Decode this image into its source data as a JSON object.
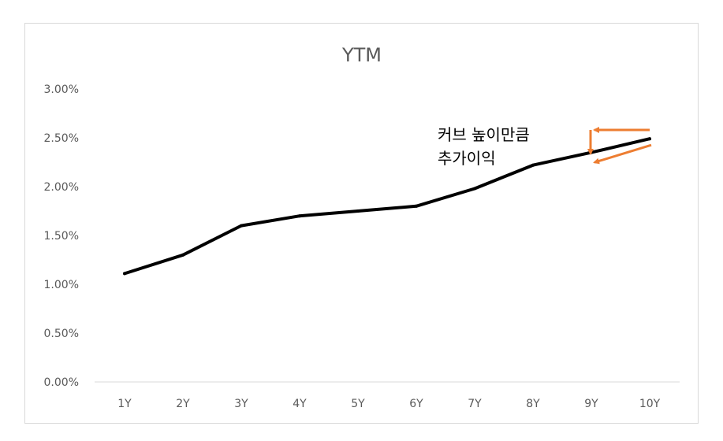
{
  "chart_data": {
    "type": "line",
    "title": "YTM",
    "xlabel": "",
    "ylabel": "",
    "categories": [
      "1Y",
      "2Y",
      "3Y",
      "4Y",
      "5Y",
      "6Y",
      "7Y",
      "8Y",
      "9Y",
      "10Y"
    ],
    "series": [
      {
        "values": [
          1.11,
          1.3,
          1.6,
          1.7,
          1.75,
          1.8,
          1.98,
          2.22,
          2.35,
          2.49
        ],
        "color": "#000000"
      }
    ],
    "ylim": [
      0,
      3
    ],
    "yticks": [
      0,
      0.5,
      1.0,
      1.5,
      2.0,
      2.5,
      3.0
    ],
    "ytick_labels": [
      "0.00%",
      "0.50%",
      "1.00%",
      "1.50%",
      "2.00%",
      "2.50%",
      "3.00%"
    ],
    "grid": false,
    "legend": "none",
    "annotation": {
      "lines": [
        "커브 높이만큼",
        "추가이익"
      ],
      "arrow_color": "#ed7d31"
    }
  }
}
